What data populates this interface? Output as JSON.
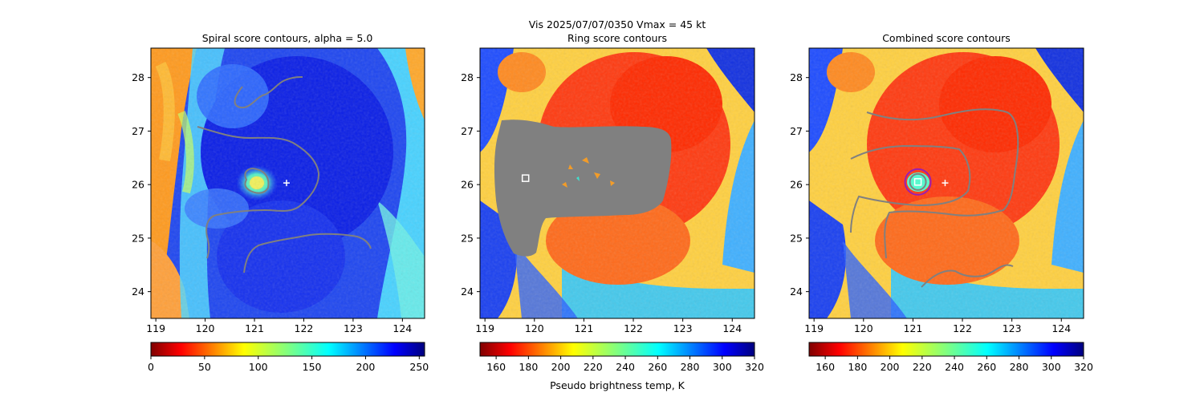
{
  "figure": {
    "suptitle": "Vis  2025/07/07/0350    Vmax = 45 kt"
  },
  "chart_data": [
    {
      "type": "heatmap",
      "title": "Spiral score contours, alpha =  5.0",
      "xlabel": "",
      "ylabel": "",
      "xlim": [
        118.9,
        124.45
      ],
      "ylim": [
        23.5,
        28.55
      ],
      "xticks": [
        "119",
        "120",
        "121",
        "122",
        "123",
        "124"
      ],
      "yticks": [
        "24",
        "25",
        "26",
        "27",
        "28"
      ],
      "colormap": "jet_r",
      "colorbar": {
        "range": [
          0,
          255
        ],
        "ticks": [
          "0",
          "50",
          "100",
          "150",
          "200",
          "250"
        ],
        "label": ""
      },
      "markers": [
        {
          "kind": "plus",
          "color": "#ffffff",
          "lon": 121.65,
          "lat": 26.03
        }
      ],
      "contour_color": "#808080"
    },
    {
      "type": "heatmap",
      "title": "Ring score contours",
      "xlabel": "",
      "ylabel": "",
      "xlim": [
        118.9,
        124.45
      ],
      "ylim": [
        23.5,
        28.55
      ],
      "xticks": [
        "119",
        "120",
        "121",
        "122",
        "123",
        "124"
      ],
      "yticks": [
        "24",
        "25",
        "26",
        "27",
        "28"
      ],
      "colormap": "jet_r",
      "colorbar": {
        "range": [
          150,
          320
        ],
        "ticks": [
          "160",
          "180",
          "200",
          "220",
          "240",
          "260",
          "280",
          "300",
          "320"
        ],
        "label": "Pseudo brightness temp, K"
      },
      "markers": [
        {
          "kind": "square",
          "color": "#ffffff",
          "lon": 119.82,
          "lat": 26.12
        }
      ],
      "contour_color": "#808080"
    },
    {
      "type": "heatmap",
      "title": "Combined score contours",
      "xlabel": "",
      "ylabel": "",
      "xlim": [
        118.9,
        124.45
      ],
      "ylim": [
        23.5,
        28.55
      ],
      "xticks": [
        "119",
        "120",
        "121",
        "122",
        "123",
        "124"
      ],
      "yticks": [
        "24",
        "25",
        "26",
        "27",
        "28"
      ],
      "colormap": "jet_r",
      "colorbar": {
        "range": [
          150,
          320
        ],
        "ticks": [
          "160",
          "180",
          "200",
          "220",
          "240",
          "260",
          "280",
          "300",
          "320"
        ],
        "label": ""
      },
      "markers": [
        {
          "kind": "plus",
          "color": "#ffffff",
          "lon": 121.65,
          "lat": 26.03
        },
        {
          "kind": "square",
          "color": "#ffffff",
          "lon": 121.1,
          "lat": 26.05
        },
        {
          "kind": "circle",
          "color": "#9b1fb0",
          "lon": 121.1,
          "lat": 26.05
        }
      ],
      "contour_color": "#808080"
    }
  ]
}
